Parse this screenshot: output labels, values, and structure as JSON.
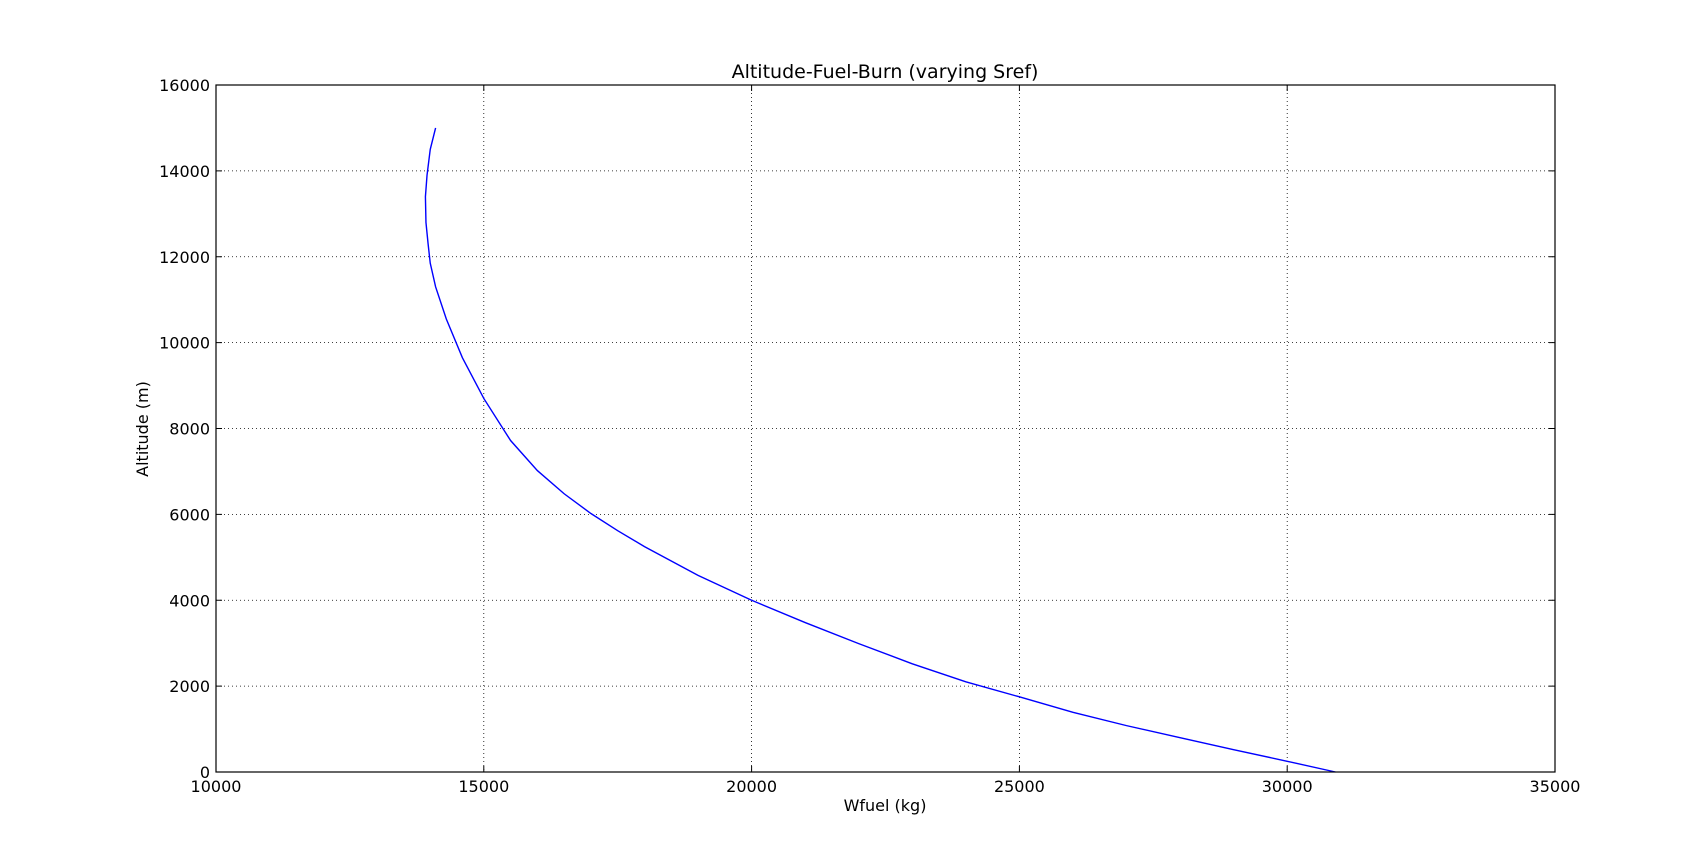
{
  "chart_data": {
    "type": "line",
    "title": "Altitude-Fuel-Burn (varying Sref)",
    "xlabel": "Wfuel (kg)",
    "ylabel": "Altitude (m)",
    "xlim": [
      10000,
      35000
    ],
    "ylim": [
      0,
      16000
    ],
    "xticks": [
      10000,
      15000,
      20000,
      25000,
      30000,
      35000
    ],
    "yticks": [
      0,
      2000,
      4000,
      6000,
      8000,
      10000,
      12000,
      14000,
      16000
    ],
    "xtick_labels": [
      "10000",
      "15000",
      "20000",
      "25000",
      "30000",
      "35000"
    ],
    "ytick_labels": [
      "0",
      "2000",
      "4000",
      "6000",
      "8000",
      "10000",
      "12000",
      "14000",
      "16000"
    ],
    "grid": true,
    "line_color": "#0000ff",
    "series": [
      {
        "x": [
          30900,
          30000,
          29000,
          28000,
          27000,
          26000,
          25000,
          24000,
          23000,
          22000,
          21000,
          20000,
          19000,
          18000,
          17500,
          17000,
          16500,
          16000,
          15500,
          15000,
          14600,
          14300,
          14100,
          14000,
          13960,
          13920,
          13910,
          13940,
          14000,
          14100
        ],
        "y": [
          0,
          250,
          520,
          800,
          1080,
          1390,
          1750,
          2100,
          2520,
          2990,
          3480,
          4000,
          4580,
          5250,
          5620,
          6020,
          6480,
          7020,
          7720,
          8700,
          9650,
          10550,
          11300,
          11850,
          12300,
          12800,
          13400,
          13900,
          14500,
          15000
        ]
      }
    ]
  }
}
